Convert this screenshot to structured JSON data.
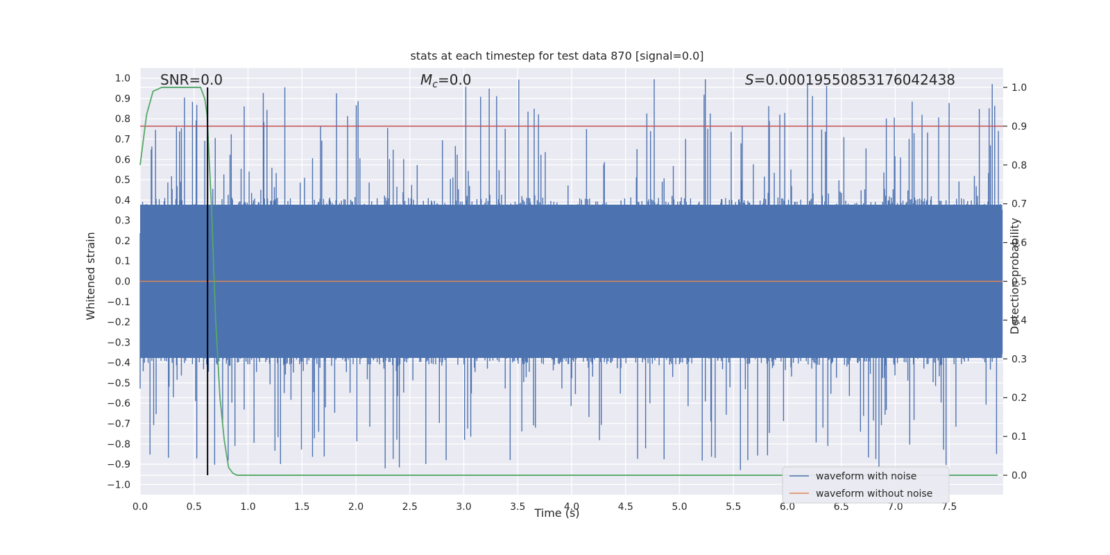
{
  "chart_data": {
    "type": "line",
    "title": "stats at each timestep for test data 870 [signal=0.0]",
    "xlabel": "Time (s)",
    "ylabel": "Whitened strain",
    "ylabel_right": "Detection probability",
    "xlim": [
      0.0,
      8.0
    ],
    "ylim": [
      -1.05,
      1.05
    ],
    "ylim_right": [
      -0.05,
      1.05
    ],
    "x_ticks": [
      "0.0",
      "0.5",
      "1.0",
      "1.5",
      "2.0",
      "2.5",
      "3.0",
      "3.5",
      "4.0",
      "4.5",
      "5.0",
      "5.5",
      "6.0",
      "6.5",
      "7.0",
      "7.5"
    ],
    "y_ticks": [
      "1.0",
      "0.9",
      "0.8",
      "0.7",
      "0.6",
      "0.5",
      "0.4",
      "0.3",
      "0.2",
      "0.1",
      "0.0",
      "−0.1",
      "−0.2",
      "−0.3",
      "−0.4",
      "−0.5",
      "−0.6",
      "−0.7",
      "−0.8",
      "−0.9",
      "−1.0"
    ],
    "y_ticks_right": [
      "1.0",
      "0.9",
      "0.8",
      "0.7",
      "0.6",
      "0.5",
      "0.4",
      "0.3",
      "0.2",
      "0.1",
      "0.0"
    ],
    "grid": true,
    "legend_position": "bottom-right",
    "annotations": {
      "snr": "SNR=0.0",
      "mc_symbol": "M",
      "mc_sub": "c",
      "mc_value": "=0.0",
      "s_symbol": "S",
      "s_value": "=0.00019550853176042438"
    },
    "colors": {
      "noise": "#4c72b0",
      "clean": "#dd8452",
      "prob": "#55a868",
      "threshold": "#c44e52",
      "marker": "#000000",
      "background": "#eaeaf2"
    },
    "threshold_prob": 0.9,
    "marker_time": 0.625,
    "noise_envelope": {
      "core_abs_max": 0.41,
      "peak_max": 1.0,
      "trough_min": -0.93,
      "duration": 7.99
    },
    "series": [
      {
        "name": "waveform with noise",
        "axis": "left",
        "description_values": "dense whitened noise, mostly within ±0.4, peaks up to 1.0"
      },
      {
        "name": "waveform without noise",
        "axis": "left",
        "x": [
          0.0,
          7.99
        ],
        "y": [
          0.0,
          0.0
        ]
      },
      {
        "axis": "right",
        "x": [
          0.0,
          0.06,
          0.12,
          0.2,
          0.3,
          0.4,
          0.5,
          0.56,
          0.6,
          0.62,
          0.66,
          0.7,
          0.74,
          0.78,
          0.82,
          0.86,
          0.9,
          1.2,
          2.0,
          3.0,
          4.0,
          5.0,
          5.5,
          6.0,
          7.0,
          7.5,
          7.95
        ],
        "y": [
          0.8,
          0.93,
          0.99,
          1.0,
          1.0,
          1.0,
          1.0,
          1.0,
          0.97,
          0.93,
          0.7,
          0.4,
          0.2,
          0.09,
          0.02,
          0.005,
          0.0,
          0.0,
          0.0,
          0.0,
          0.0,
          0.0,
          0.0,
          0.0,
          0.0,
          0.0,
          0.0
        ]
      }
    ]
  }
}
